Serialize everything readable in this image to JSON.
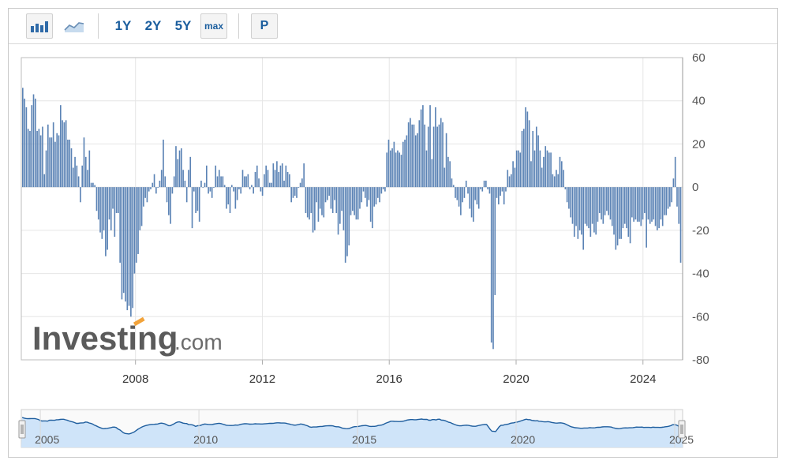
{
  "toolbar": {
    "bar_icon": "bar-chart-icon",
    "area_icon": "area-chart-icon",
    "range_1y": "1Y",
    "range_2y": "2Y",
    "range_5y": "5Y",
    "range_max": "max",
    "p_label": "P"
  },
  "watermark": {
    "brand": "Investing",
    "suffix": ".com"
  },
  "colors": {
    "bar": "#5b83b5",
    "navigator_fill": "#cfe4f9",
    "navigator_line": "#1f5e9e",
    "grid": "#e6e6e6"
  },
  "chart_data": {
    "type": "bar",
    "title": "",
    "xlabel": "",
    "ylabel": "",
    "ylim": [
      -80,
      60
    ],
    "y_ticks": [
      60,
      40,
      20,
      0,
      -20,
      -40,
      -60,
      -80
    ],
    "x_ticks": [
      "2008",
      "2012",
      "2016",
      "2020",
      "2024"
    ],
    "x_tick_years": [
      2008,
      2012,
      2016,
      2020,
      2024
    ],
    "x_start": 2004.4,
    "x_end": 2025.25,
    "grid": true,
    "y_axis_position": "right",
    "values": [
      46,
      41,
      37,
      27,
      26,
      38,
      43,
      41,
      26,
      27,
      24,
      28,
      6,
      17,
      29,
      23,
      23,
      30,
      21,
      25,
      24,
      38,
      31,
      30,
      31,
      22,
      22,
      18,
      9,
      14,
      10,
      5,
      -7,
      10,
      23,
      14,
      8,
      17,
      2,
      2,
      1,
      -11,
      -15,
      -21,
      -24,
      -20,
      -32,
      -29,
      -15,
      -20,
      -10,
      -23,
      -12,
      -12,
      -35,
      -52,
      -49,
      -53,
      -57,
      -55,
      -60,
      -56,
      -40,
      -35,
      -31,
      -20,
      -18,
      -9,
      -5,
      -7,
      -2,
      -1,
      2,
      6,
      -3,
      0,
      3,
      8,
      22,
      5,
      -7,
      -13,
      -17,
      -3,
      5,
      19,
      13,
      17,
      18,
      8,
      3,
      -7,
      8,
      14,
      -19,
      -2,
      -12,
      -11,
      -16,
      3,
      0,
      2,
      10,
      -3,
      -2,
      -5,
      0,
      10,
      5,
      8,
      5,
      5,
      1,
      -10,
      -8,
      -12,
      1,
      -2,
      -10,
      -6,
      -1,
      -3,
      8,
      5,
      5,
      6,
      -1,
      1,
      -3,
      7,
      10,
      4,
      -2,
      -4,
      6,
      10,
      8,
      2,
      2,
      11,
      8,
      12,
      7,
      10,
      11,
      3,
      10,
      7,
      6,
      -7,
      -5,
      -4,
      -5,
      0,
      2,
      4,
      11,
      -12,
      -14,
      -15,
      -12,
      -21,
      -20,
      -7,
      -16,
      -10,
      -13,
      -14,
      -7,
      -6,
      -4,
      -10,
      -12,
      -6,
      -12,
      -22,
      -17,
      -11,
      -20,
      -35,
      -32,
      -27,
      -13,
      -11,
      -13,
      -15,
      -15,
      -10,
      -7,
      -2,
      -5,
      -9,
      -6,
      -16,
      -19,
      -9,
      -8,
      -5,
      -7,
      -3,
      -1,
      -2,
      16,
      22,
      17,
      18,
      21,
      16,
      17,
      16,
      15,
      21,
      22,
      24,
      30,
      32,
      29,
      29,
      24,
      25,
      31,
      36,
      38,
      29,
      17,
      28,
      38,
      13,
      28,
      37,
      28,
      29,
      32,
      30,
      9,
      25,
      14,
      12,
      4,
      1,
      -5,
      -6,
      -9,
      -13,
      -7,
      -5,
      3,
      -3,
      -10,
      -14,
      -16,
      -6,
      -8,
      -10,
      -1,
      -2,
      3,
      3,
      -1,
      -3,
      -72,
      -75,
      -50,
      -5,
      -8,
      -4,
      -2,
      -8,
      -2,
      8,
      5,
      6,
      12,
      9,
      17,
      17,
      16,
      26,
      27,
      37,
      35,
      31,
      12,
      26,
      17,
      28,
      24,
      17,
      9,
      14,
      19,
      17,
      16,
      16,
      6,
      5,
      8,
      6,
      14,
      12,
      8,
      -1,
      -7,
      -10,
      -14,
      -17,
      -23,
      -18,
      -24,
      -20,
      -22,
      -29,
      -17,
      -18,
      -19,
      -23,
      -17,
      -21,
      -22,
      -16,
      -12,
      -15,
      -17,
      -13,
      -11,
      -13,
      -15,
      -18,
      -22,
      -29,
      -27,
      -24,
      -24,
      -19,
      -17,
      -19,
      -23,
      -26,
      -14,
      -16,
      -15,
      -16,
      -16,
      -18,
      -15,
      -12,
      -28,
      -15,
      -17,
      -16,
      -15,
      -18,
      -20,
      -19,
      -15,
      -18,
      -13,
      -13,
      -10,
      -9,
      -7,
      4,
      14,
      -9,
      -17,
      -35
    ]
  },
  "navigator": {
    "labels": [
      "2005",
      "2010",
      "2015",
      "2020",
      "2025"
    ],
    "label_years": [
      2005,
      2010,
      2015,
      2020,
      2025
    ],
    "x_start": 2004.4,
    "x_end": 2025.25
  }
}
